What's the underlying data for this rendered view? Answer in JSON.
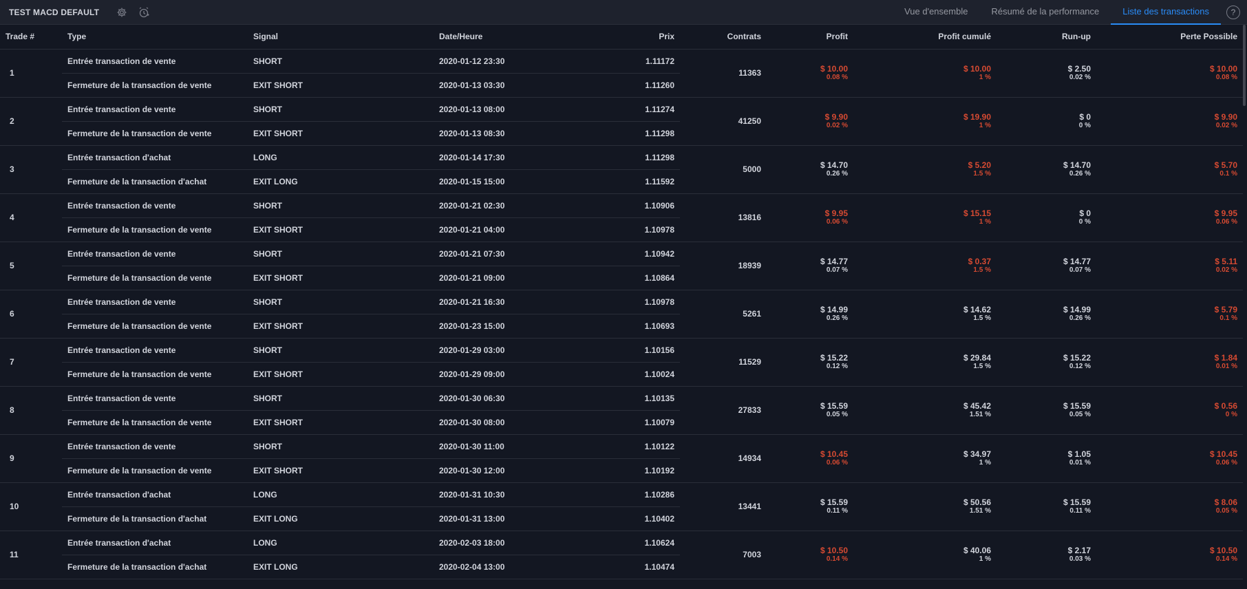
{
  "header": {
    "title": "TEST MACD DEFAULT",
    "tabs": [
      "Vue d'ensemble",
      "Résumé de la performance",
      "Liste des transactions"
    ],
    "active_tab": 2,
    "help": "?"
  },
  "columns": [
    "Trade #",
    "Type",
    "Signal",
    "Date/Heure",
    "Prix",
    "Contrats",
    "Profit",
    "Profit cumulé",
    "Run-up",
    "Perte Possible"
  ],
  "trades": [
    {
      "num": "1",
      "entry_type": "Entrée transaction de vente",
      "entry_signal": "SHORT",
      "entry_date": "2020-01-12 23:30",
      "entry_price": "1.11172",
      "exit_type": "Fermeture de la transaction de vente",
      "exit_signal": "EXIT SHORT",
      "exit_date": "2020-01-13 03:30",
      "exit_price": "1.11260",
      "contracts": "11363",
      "profit": "$ 10.00",
      "profit_pct": "0.08 %",
      "profit_neg": true,
      "cum": "$ 10.00",
      "cum_pct": "1 %",
      "cum_neg": true,
      "runup": "$ 2.50",
      "runup_pct": "0.02 %",
      "dd": "$ 10.00",
      "dd_pct": "0.08 %"
    },
    {
      "num": "2",
      "entry_type": "Entrée transaction de vente",
      "entry_signal": "SHORT",
      "entry_date": "2020-01-13 08:00",
      "entry_price": "1.11274",
      "exit_type": "Fermeture de la transaction de vente",
      "exit_signal": "EXIT SHORT",
      "exit_date": "2020-01-13 08:30",
      "exit_price": "1.11298",
      "contracts": "41250",
      "profit": "$ 9.90",
      "profit_pct": "0.02 %",
      "profit_neg": true,
      "cum": "$ 19.90",
      "cum_pct": "1 %",
      "cum_neg": true,
      "runup": "$ 0",
      "runup_pct": "0 %",
      "dd": "$ 9.90",
      "dd_pct": "0.02 %"
    },
    {
      "num": "3",
      "entry_type": "Entrée transaction d'achat",
      "entry_signal": "LONG",
      "entry_date": "2020-01-14 17:30",
      "entry_price": "1.11298",
      "exit_type": "Fermeture de la transaction d'achat",
      "exit_signal": "EXIT LONG",
      "exit_date": "2020-01-15 15:00",
      "exit_price": "1.11592",
      "contracts": "5000",
      "profit": "$ 14.70",
      "profit_pct": "0.26 %",
      "profit_neg": false,
      "cum": "$ 5.20",
      "cum_pct": "1.5 %",
      "cum_neg": true,
      "runup": "$ 14.70",
      "runup_pct": "0.26 %",
      "dd": "$ 5.70",
      "dd_pct": "0.1 %"
    },
    {
      "num": "4",
      "entry_type": "Entrée transaction de vente",
      "entry_signal": "SHORT",
      "entry_date": "2020-01-21 02:30",
      "entry_price": "1.10906",
      "exit_type": "Fermeture de la transaction de vente",
      "exit_signal": "EXIT SHORT",
      "exit_date": "2020-01-21 04:00",
      "exit_price": "1.10978",
      "contracts": "13816",
      "profit": "$ 9.95",
      "profit_pct": "0.06 %",
      "profit_neg": true,
      "cum": "$ 15.15",
      "cum_pct": "1 %",
      "cum_neg": true,
      "runup": "$ 0",
      "runup_pct": "0 %",
      "dd": "$ 9.95",
      "dd_pct": "0.06 %"
    },
    {
      "num": "5",
      "entry_type": "Entrée transaction de vente",
      "entry_signal": "SHORT",
      "entry_date": "2020-01-21 07:30",
      "entry_price": "1.10942",
      "exit_type": "Fermeture de la transaction de vente",
      "exit_signal": "EXIT SHORT",
      "exit_date": "2020-01-21 09:00",
      "exit_price": "1.10864",
      "contracts": "18939",
      "profit": "$ 14.77",
      "profit_pct": "0.07 %",
      "profit_neg": false,
      "cum": "$ 0.37",
      "cum_pct": "1.5 %",
      "cum_neg": true,
      "runup": "$ 14.77",
      "runup_pct": "0.07 %",
      "dd": "$ 5.11",
      "dd_pct": "0.02 %"
    },
    {
      "num": "6",
      "entry_type": "Entrée transaction de vente",
      "entry_signal": "SHORT",
      "entry_date": "2020-01-21 16:30",
      "entry_price": "1.10978",
      "exit_type": "Fermeture de la transaction de vente",
      "exit_signal": "EXIT SHORT",
      "exit_date": "2020-01-23 15:00",
      "exit_price": "1.10693",
      "contracts": "5261",
      "profit": "$ 14.99",
      "profit_pct": "0.26 %",
      "profit_neg": false,
      "cum": "$ 14.62",
      "cum_pct": "1.5 %",
      "cum_neg": false,
      "runup": "$ 14.99",
      "runup_pct": "0.26 %",
      "dd": "$ 5.79",
      "dd_pct": "0.1 %"
    },
    {
      "num": "7",
      "entry_type": "Entrée transaction de vente",
      "entry_signal": "SHORT",
      "entry_date": "2020-01-29 03:00",
      "entry_price": "1.10156",
      "exit_type": "Fermeture de la transaction de vente",
      "exit_signal": "EXIT SHORT",
      "exit_date": "2020-01-29 09:00",
      "exit_price": "1.10024",
      "contracts": "11529",
      "profit": "$ 15.22",
      "profit_pct": "0.12 %",
      "profit_neg": false,
      "cum": "$ 29.84",
      "cum_pct": "1.5 %",
      "cum_neg": false,
      "runup": "$ 15.22",
      "runup_pct": "0.12 %",
      "dd": "$ 1.84",
      "dd_pct": "0.01 %"
    },
    {
      "num": "8",
      "entry_type": "Entrée transaction de vente",
      "entry_signal": "SHORT",
      "entry_date": "2020-01-30 06:30",
      "entry_price": "1.10135",
      "exit_type": "Fermeture de la transaction de vente",
      "exit_signal": "EXIT SHORT",
      "exit_date": "2020-01-30 08:00",
      "exit_price": "1.10079",
      "contracts": "27833",
      "profit": "$ 15.59",
      "profit_pct": "0.05 %",
      "profit_neg": false,
      "cum": "$ 45.42",
      "cum_pct": "1.51 %",
      "cum_neg": false,
      "runup": "$ 15.59",
      "runup_pct": "0.05 %",
      "dd": "$ 0.56",
      "dd_pct": "0 %"
    },
    {
      "num": "9",
      "entry_type": "Entrée transaction de vente",
      "entry_signal": "SHORT",
      "entry_date": "2020-01-30 11:00",
      "entry_price": "1.10122",
      "exit_type": "Fermeture de la transaction de vente",
      "exit_signal": "EXIT SHORT",
      "exit_date": "2020-01-30 12:00",
      "exit_price": "1.10192",
      "contracts": "14934",
      "profit": "$ 10.45",
      "profit_pct": "0.06 %",
      "profit_neg": true,
      "cum": "$ 34.97",
      "cum_pct": "1 %",
      "cum_neg": false,
      "runup": "$ 1.05",
      "runup_pct": "0.01 %",
      "dd": "$ 10.45",
      "dd_pct": "0.06 %"
    },
    {
      "num": "10",
      "entry_type": "Entrée transaction d'achat",
      "entry_signal": "LONG",
      "entry_date": "2020-01-31 10:30",
      "entry_price": "1.10286",
      "exit_type": "Fermeture de la transaction d'achat",
      "exit_signal": "EXIT LONG",
      "exit_date": "2020-01-31 13:00",
      "exit_price": "1.10402",
      "contracts": "13441",
      "profit": "$ 15.59",
      "profit_pct": "0.11 %",
      "profit_neg": false,
      "cum": "$ 50.56",
      "cum_pct": "1.51 %",
      "cum_neg": false,
      "runup": "$ 15.59",
      "runup_pct": "0.11 %",
      "dd": "$ 8.06",
      "dd_pct": "0.05 %"
    },
    {
      "num": "11",
      "entry_type": "Entrée transaction d'achat",
      "entry_signal": "LONG",
      "entry_date": "2020-02-03 18:00",
      "entry_price": "1.10624",
      "exit_type": "Fermeture de la transaction d'achat",
      "exit_signal": "EXIT LONG",
      "exit_date": "2020-02-04 13:00",
      "exit_price": "1.10474",
      "contracts": "7003",
      "profit": "$ 10.50",
      "profit_pct": "0.14 %",
      "profit_neg": true,
      "cum": "$ 40.06",
      "cum_pct": "1 %",
      "cum_neg": false,
      "runup": "$ 2.17",
      "runup_pct": "0.03 %",
      "dd": "$ 10.50",
      "dd_pct": "0.14 %"
    }
  ],
  "colors": {
    "negative": "#d64a32",
    "accent": "#2a8cf7"
  }
}
